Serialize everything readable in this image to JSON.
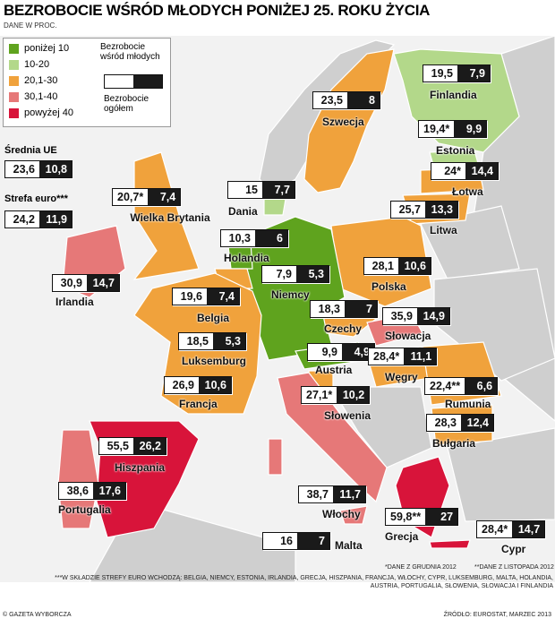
{
  "title": "BEZROBOCIE WŚRÓD MŁODYCH PONIŻEJ 25. ROKU ŻYCIA",
  "subtitle": "DANE W PROC.",
  "legend": {
    "items": [
      {
        "label": "poniżej 10",
        "color": "#5fa31e"
      },
      {
        "label": "10-20",
        "color": "#b3d88a"
      },
      {
        "label": "20,1-30",
        "color": "#f0a23c"
      },
      {
        "label": "30,1-40",
        "color": "#e67878"
      },
      {
        "label": "powyżej 40",
        "color": "#d8143a"
      }
    ],
    "youth_label": "Bezrobocie wśród młodych",
    "total_label": "Bezrobocie ogółem"
  },
  "averages": [
    {
      "name": "Średnia UE",
      "youth": "23,6",
      "total": "10,8"
    },
    {
      "name": "Strefa euro***",
      "youth": "24,2",
      "total": "11,9"
    }
  ],
  "countries": [
    {
      "name": "Finlandia",
      "youth": "19,5",
      "total": "7,9"
    },
    {
      "name": "Szwecja",
      "youth": "23,5",
      "total": "8"
    },
    {
      "name": "Estonia",
      "youth": "19,4*",
      "total": "9,9"
    },
    {
      "name": "Łotwa",
      "youth": "24*",
      "total": "14,4"
    },
    {
      "name": "Dania",
      "youth": "15",
      "total": "7,7"
    },
    {
      "name": "Wielka Brytania",
      "youth": "20,7*",
      "total": "7,4"
    },
    {
      "name": "Litwa",
      "youth": "25,7",
      "total": "13,3"
    },
    {
      "name": "Holandia",
      "youth": "10,3",
      "total": "6"
    },
    {
      "name": "Polska",
      "youth": "28,1",
      "total": "10,6"
    },
    {
      "name": "Niemcy",
      "youth": "7,9",
      "total": "5,3"
    },
    {
      "name": "Irlandia",
      "youth": "30,9",
      "total": "14,7"
    },
    {
      "name": "Belgia",
      "youth": "19,6",
      "total": "7,4"
    },
    {
      "name": "Czechy",
      "youth": "18,3",
      "total": "7"
    },
    {
      "name": "Słowacja",
      "youth": "35,9",
      "total": "14,9"
    },
    {
      "name": "Luksemburg",
      "youth": "18,5",
      "total": "5,3"
    },
    {
      "name": "Austria",
      "youth": "9,9",
      "total": "4,9"
    },
    {
      "name": "Węgry",
      "youth": "28,4*",
      "total": "11,1"
    },
    {
      "name": "Francja",
      "youth": "26,9",
      "total": "10,6"
    },
    {
      "name": "Rumunia",
      "youth": "22,4**",
      "total": "6,6"
    },
    {
      "name": "Słowenia",
      "youth": "27,1*",
      "total": "10,2"
    },
    {
      "name": "Bułgaria",
      "youth": "28,3",
      "total": "12,4"
    },
    {
      "name": "Hiszpania",
      "youth": "55,5",
      "total": "26,2"
    },
    {
      "name": "Portugalia",
      "youth": "38,6",
      "total": "17,6"
    },
    {
      "name": "Włochy",
      "youth": "38,7",
      "total": "11,7"
    },
    {
      "name": "Grecja",
      "youth": "59,8**",
      "total": "27"
    },
    {
      "name": "Malta",
      "youth": "16",
      "total": "7"
    },
    {
      "name": "Cypr",
      "youth": "28,4*",
      "total": "14,7"
    }
  ],
  "footnotes": {
    "note1": "*DANE Z GRUDNIA 2012",
    "note2": "**DANE Z LISTOPADA 2012",
    "note3": "***W SKŁADZIE STREFY EURO WCHODZĄ: BELGIA, NIEMCY, ESTONIA, IRLANDIA, GRECJA, HISZPANIA, FRANCJA, WŁOCHY, CYPR, LUKSEMBURG, MALTA, HOLANDIA, AUSTRIA, PORTUGALIA, SŁOWENIA, SŁOWACJA I FINLANDIA"
  },
  "credit": "© GAZETA WYBORCZA",
  "source": "ŹRÓDŁO: EUROSTAT, MARZEC 2013"
}
